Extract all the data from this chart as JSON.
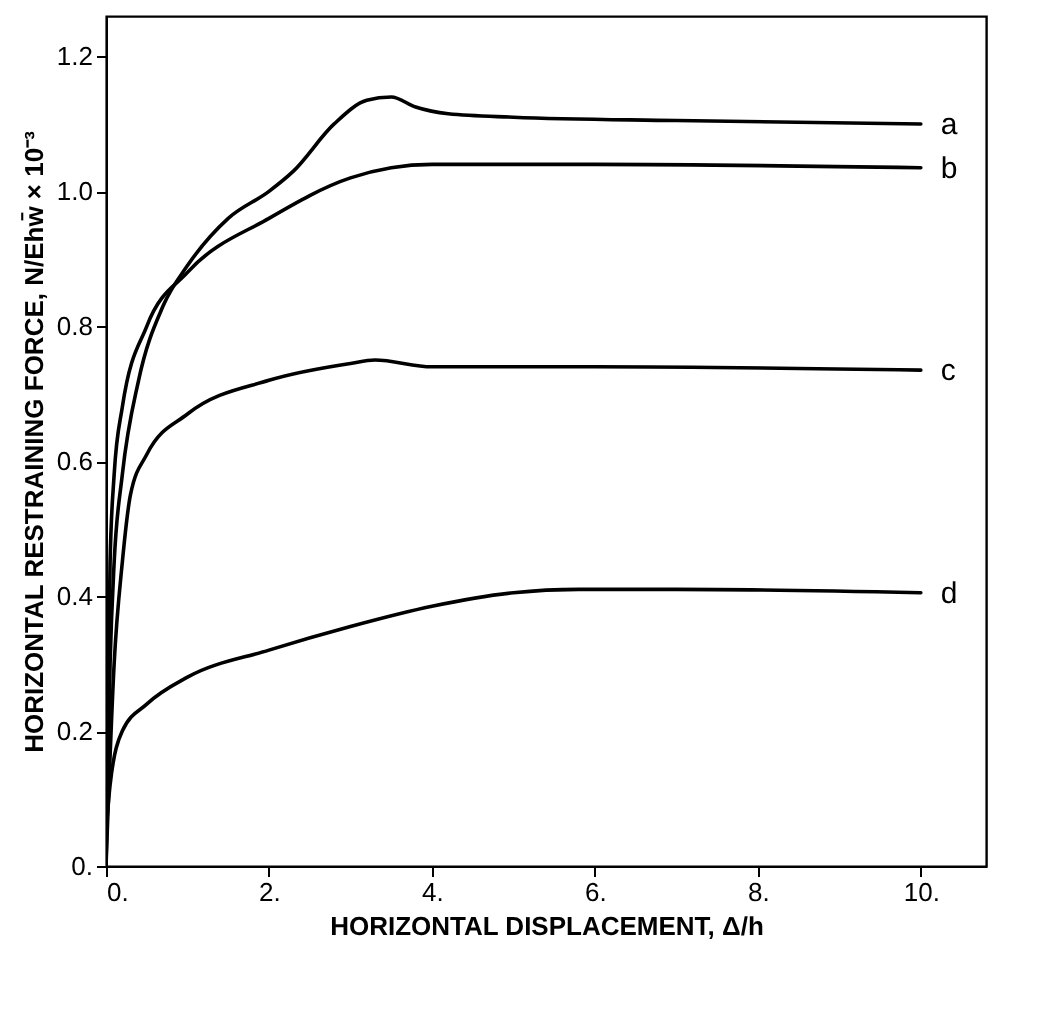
{
  "chart_data": {
    "type": "line",
    "xlabel": "HORIZONTAL DISPLACEMENT, Δ/h",
    "ylabel": "HORIZONTAL RESTRAINING FORCE, N/Ehw̄ × 10⁻³",
    "xlim": [
      0,
      10.8
    ],
    "ylim": [
      0,
      1.26
    ],
    "xticks": [
      {
        "value": 0,
        "label": "0."
      },
      {
        "value": 2,
        "label": "2."
      },
      {
        "value": 4,
        "label": "4."
      },
      {
        "value": 6,
        "label": "6."
      },
      {
        "value": 8,
        "label": "8."
      },
      {
        "value": 10,
        "label": "10."
      }
    ],
    "yticks": [
      {
        "value": 0,
        "label": "0."
      },
      0.2,
      0.4,
      0.6,
      0.8,
      {
        "value": 1.0,
        "label": "1.0"
      },
      1.2
    ],
    "line_style": "solid",
    "series": [
      {
        "name": "a",
        "color": "#000000",
        "x": [
          0,
          0.05,
          0.1,
          0.2,
          0.4,
          0.7,
          1,
          1.5,
          2,
          2.3,
          2.8,
          3.2,
          3.5,
          3.8,
          4.2,
          5,
          7,
          10
        ],
        "values": [
          0,
          0.3,
          0.45,
          0.58,
          0.72,
          0.83,
          0.89,
          0.96,
          1.0,
          1.03,
          1.1,
          1.135,
          1.14,
          1.125,
          1.115,
          1.11,
          1.105,
          1.1
        ]
      },
      {
        "name": "b",
        "color": "#000000",
        "x": [
          0,
          0.05,
          0.1,
          0.2,
          0.5,
          1,
          2,
          3,
          3.5,
          4,
          6,
          10
        ],
        "values": [
          0,
          0.45,
          0.58,
          0.68,
          0.8,
          0.88,
          0.96,
          1.02,
          1.035,
          1.04,
          1.04,
          1.035
        ]
      },
      {
        "name": "c",
        "color": "#000000",
        "x": [
          0,
          0.1,
          0.2,
          0.3,
          0.5,
          1,
          2,
          3,
          3.3,
          4,
          6,
          10
        ],
        "values": [
          0,
          0.3,
          0.45,
          0.55,
          0.61,
          0.67,
          0.72,
          0.745,
          0.75,
          0.74,
          0.74,
          0.735
        ]
      },
      {
        "name": "d",
        "color": "#000000",
        "x": [
          0,
          0.05,
          0.2,
          0.5,
          1,
          2,
          3,
          4,
          5,
          5.8,
          7,
          10
        ],
        "values": [
          0.05,
          0.12,
          0.2,
          0.24,
          0.28,
          0.32,
          0.355,
          0.385,
          0.405,
          0.41,
          0.41,
          0.405
        ]
      }
    ]
  }
}
